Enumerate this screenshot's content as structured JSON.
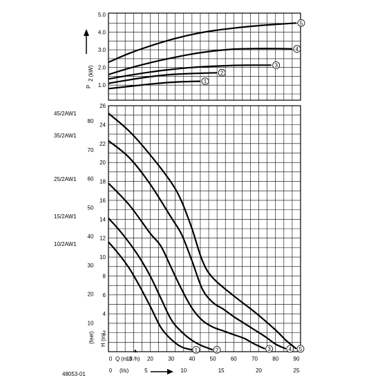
{
  "figure_code": "48053-01",
  "model_labels": [
    {
      "name": "45/2AW1",
      "head_ft": 85
    },
    {
      "name": "35/2AW1",
      "head_ft": 75
    },
    {
      "name": "25/2AW1",
      "head_ft": 60
    },
    {
      "name": "15/2AW1",
      "head_ft": 45
    },
    {
      "name": "10/2AW1",
      "head_ft": 35
    }
  ],
  "chart_data": [
    {
      "type": "line",
      "panel": "power",
      "ylabel": "P2 (kW)",
      "ylabel_main": "P",
      "ylabel_sub": "2 (kW)",
      "x_axis_unit": "m3/h",
      "xlim": [
        0,
        92
      ],
      "ylim": [
        0,
        5.0
      ],
      "y_ticks": [
        "5.0",
        "4.0",
        "3.0",
        "2.0",
        "1.0"
      ],
      "series": [
        {
          "name": "1",
          "x": [
            0,
            10,
            20,
            30,
            40,
            44
          ],
          "y": [
            0.8,
            0.93,
            1.06,
            1.16,
            1.21,
            1.22
          ]
        },
        {
          "name": "2",
          "x": [
            0,
            10,
            20,
            30,
            40,
            52
          ],
          "y": [
            1.1,
            1.3,
            1.48,
            1.6,
            1.66,
            1.7
          ]
        },
        {
          "name": "3",
          "x": [
            0,
            10,
            20,
            30,
            40,
            50,
            60,
            70,
            78
          ],
          "y": [
            1.35,
            1.56,
            1.74,
            1.89,
            2.0,
            2.07,
            2.12,
            2.13,
            2.13
          ]
        },
        {
          "name": "4",
          "x": [
            0,
            10,
            20,
            30,
            40,
            50,
            60,
            70,
            80,
            88
          ],
          "y": [
            1.6,
            1.96,
            2.27,
            2.53,
            2.76,
            2.93,
            3.04,
            3.07,
            3.07,
            3.05
          ]
        },
        {
          "name": "5",
          "x": [
            0,
            10,
            20,
            30,
            40,
            50,
            60,
            70,
            80,
            90,
            96
          ],
          "y": [
            2.3,
            2.8,
            3.22,
            3.58,
            3.87,
            4.08,
            4.23,
            4.35,
            4.44,
            4.52,
            4.56
          ]
        }
      ]
    },
    {
      "type": "line",
      "panel": "head",
      "ylabel_m": "H(m)",
      "ylabel_m_letter": "H",
      "ylabel_m_unit": "(m)",
      "ylabel_ft": "(feet)",
      "xlim": [
        0,
        92
      ],
      "ylim": [
        0,
        26
      ],
      "y_ticks_m": [
        "26",
        "24",
        "22",
        "20",
        "18",
        "16",
        "14",
        "12",
        "10",
        "8",
        "6",
        "4",
        "2"
      ],
      "y_ticks_ft": [
        "80",
        "70",
        "60",
        "50",
        "40",
        "30",
        "20",
        "10"
      ],
      "x_axis_m3h": {
        "label_letter": "Q",
        "label_unit": "(m 3 /h)",
        "ticks": [
          "0",
          "10",
          "20",
          "30",
          "40",
          "50",
          "60",
          "70",
          "80",
          "90"
        ]
      },
      "x_axis_ls": {
        "label": "(l/s)",
        "ticks": [
          "0",
          "5",
          "10",
          "15",
          "20",
          "25"
        ]
      },
      "marker": {
        "x": 12,
        "label": "▲"
      },
      "series": [
        {
          "name": "1",
          "x": [
            0,
            5,
            10,
            15,
            20,
            25,
            30,
            35,
            40
          ],
          "y": [
            11.6,
            10.3,
            8.8,
            6.9,
            4.8,
            2.6,
            1.3,
            0.5,
            0.2
          ]
        },
        {
          "name": "2",
          "x": [
            0,
            5,
            10,
            15,
            20,
            25,
            30,
            35,
            40,
            45,
            50
          ],
          "y": [
            14.1,
            12.9,
            11.5,
            9.9,
            8.0,
            5.7,
            3.4,
            2.1,
            1.2,
            0.6,
            0.2
          ]
        },
        {
          "name": "3",
          "x": [
            0,
            10,
            20,
            25,
            30,
            35,
            40,
            45,
            50,
            55,
            60,
            65,
            70,
            75
          ],
          "y": [
            17.8,
            15.5,
            12.5,
            11.2,
            8.9,
            6.6,
            4.6,
            3.3,
            2.6,
            2.2,
            1.8,
            1.4,
            0.8,
            0.3
          ]
        },
        {
          "name": "4",
          "x": [
            0,
            10,
            20,
            30,
            35,
            40,
            45,
            50,
            55,
            60,
            65,
            70,
            75,
            80,
            85
          ],
          "y": [
            22.3,
            20.5,
            17.7,
            14.2,
            12.4,
            9.6,
            6.6,
            5.2,
            4.5,
            3.7,
            3.0,
            2.3,
            1.6,
            0.8,
            0.3
          ]
        },
        {
          "name": "5",
          "x": [
            0,
            10,
            20,
            30,
            35,
            40,
            45,
            50,
            60,
            70,
            80,
            85,
            90
          ],
          "y": [
            25.2,
            23.3,
            20.8,
            17.9,
            15.9,
            13.0,
            9.6,
            7.8,
            5.9,
            4.2,
            2.3,
            1.2,
            0.3
          ]
        }
      ]
    }
  ]
}
